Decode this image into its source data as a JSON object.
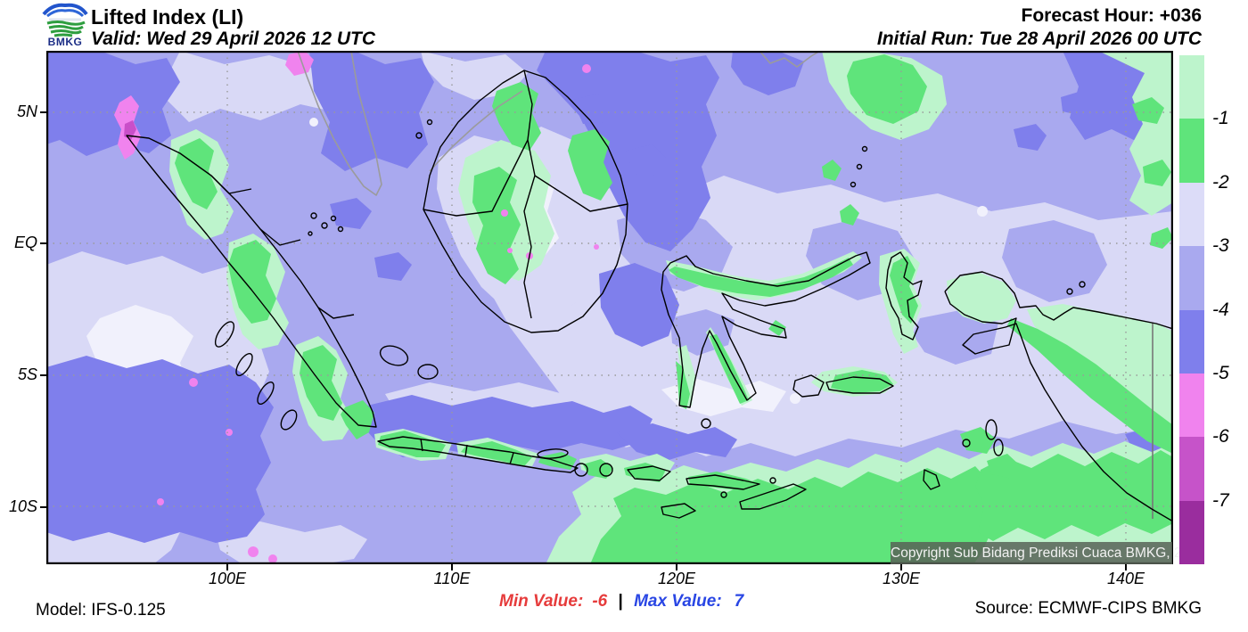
{
  "header": {
    "title": "Lifted Index (LI)",
    "valid": "Valid: Wed 29 April 2026 12 UTC",
    "forecast_hour": "Forecast Hour: +036",
    "initial_run": "Initial Run: Tue 28 April 2026 00 UTC",
    "logo_text": "BMKG"
  },
  "map": {
    "lat_labels": [
      "5N",
      "EQ",
      "5S",
      "10S"
    ],
    "lon_labels": [
      "100E",
      "110E",
      "120E",
      "130E",
      "140E"
    ],
    "copyright": "Copyright Sub Bidang Prediksi Cuaca BMKG, 2026"
  },
  "legend": {
    "tick_labels": [
      "-1",
      "-2",
      "-3",
      "-4",
      "-5",
      "-6",
      "-7"
    ],
    "colors": [
      "#bdf4cc",
      "#5fe47b",
      "#dcdcf8",
      "#a9a9ef",
      "#7f7fec",
      "#f083ee",
      "#c653c9",
      "#9a2d9e"
    ]
  },
  "footer": {
    "model": "Model: IFS-0.125",
    "min_label": "Min Value:",
    "min_value": "-6",
    "separator": "|",
    "max_label": "Max Value:",
    "max_value": "7",
    "source": "Source: ECMWF-CIPS BMKG",
    "min_color": "#e63b3b",
    "max_color": "#2946e4"
  }
}
